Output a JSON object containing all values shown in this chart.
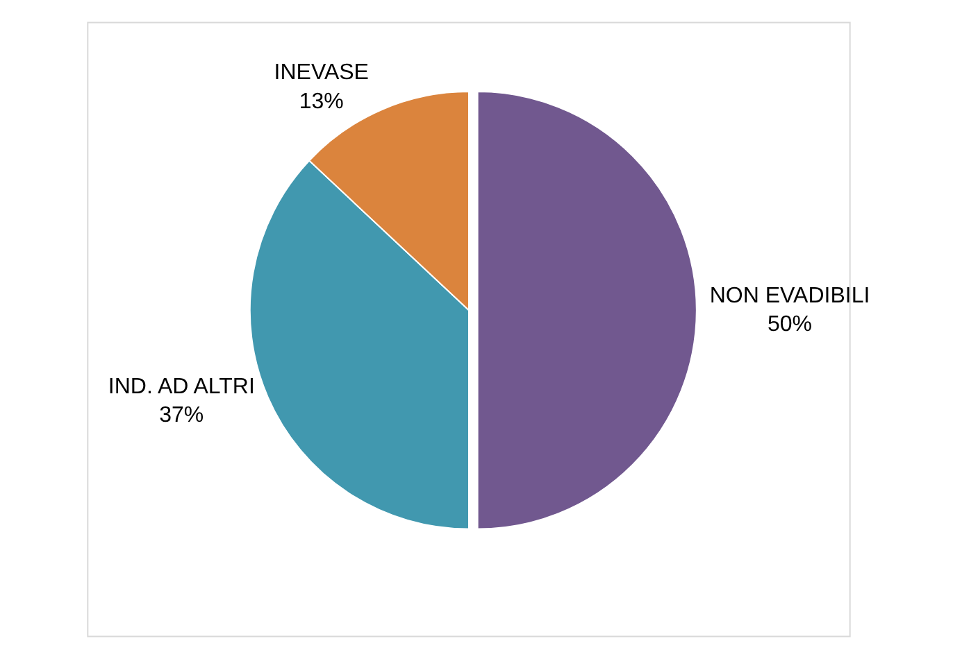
{
  "chart_data": {
    "type": "pie",
    "categories": [
      "NON EVADIBILI",
      "IND. AD ALTRI",
      "INEVASE"
    ],
    "values": [
      50,
      37,
      13
    ],
    "colors": [
      "#71588f",
      "#4198af",
      "#db843d"
    ],
    "value_labels": [
      "50%",
      "37%",
      "13%"
    ],
    "legend": false
  }
}
